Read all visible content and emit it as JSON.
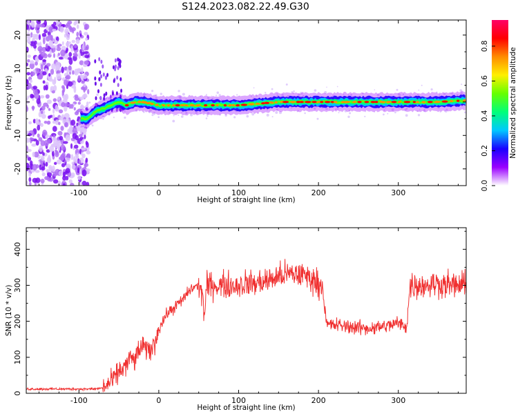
{
  "title": "S124.2023.082.22.49.G30",
  "chart_data": [
    {
      "type": "heatmap",
      "title": "S124.2023.082.22.49.G30",
      "xlabel": "Height of straight line (km)",
      "ylabel": "Frequency (Hz)",
      "xlim": [
        -166,
        385
      ],
      "ylim": [
        -25,
        24.5
      ],
      "x_ticks": [
        -100,
        0,
        100,
        200,
        300
      ],
      "y_ticks": [
        -20,
        -10,
        0,
        10,
        20
      ],
      "colorbar": {
        "label": "Normalized spectral amplitude",
        "range": [
          0,
          0.95
        ],
        "ticks": [
          0.0,
          0.2,
          0.4,
          0.6,
          0.8
        ],
        "colormap": [
          "#ffffff",
          "#9a00ff",
          "#1a00ff",
          "#00c8ff",
          "#00ff7a",
          "#66ff00",
          "#fff000",
          "#ff8c00",
          "#ff0000",
          "#ff0066"
        ]
      },
      "ridge": {
        "x": [
          -100,
          -90,
          -80,
          -70,
          -60,
          -50,
          -40,
          -30,
          -20,
          0,
          50,
          100,
          150,
          200,
          250,
          300,
          350,
          385
        ],
        "frequency": [
          -5,
          -5,
          -3,
          -2,
          -1,
          0,
          -1,
          0,
          0,
          -1,
          -1,
          -1,
          0,
          0,
          0,
          0,
          0,
          0.5
        ]
      },
      "grid": false
    },
    {
      "type": "line",
      "xlabel": "Height of straight line (km)",
      "ylabel": "SNR (10 * v/v)",
      "xlim": [
        -166,
        385
      ],
      "ylim": [
        0,
        460
      ],
      "x_ticks": [
        -100,
        0,
        100,
        200,
        300
      ],
      "y_ticks": [
        0,
        100,
        200,
        300,
        400
      ],
      "color": "#f03030",
      "series": [
        {
          "x": [
            -166,
            -140,
            -110,
            -80,
            -70,
            -60,
            -50,
            -45,
            -40,
            -35,
            -30,
            -25,
            -20,
            -15,
            -10,
            -5,
            0,
            5,
            10,
            20,
            30,
            40,
            50,
            55,
            57,
            60,
            70,
            80,
            90,
            100,
            110,
            120,
            130,
            140,
            150,
            160,
            170,
            180,
            190,
            200,
            205,
            210,
            220,
            240,
            260,
            280,
            300,
            310,
            315,
            330,
            350,
            370,
            385
          ],
          "values": [
            12,
            12,
            12,
            12,
            15,
            30,
            60,
            70,
            80,
            100,
            90,
            120,
            130,
            120,
            120,
            140,
            180,
            200,
            220,
            240,
            260,
            290,
            300,
            280,
            200,
            300,
            300,
            300,
            300,
            300,
            305,
            305,
            310,
            315,
            325,
            330,
            330,
            330,
            320,
            305,
            300,
            190,
            190,
            185,
            180,
            185,
            195,
            185,
            300,
            300,
            305,
            300,
            300
          ]
        }
      ],
      "grid": false
    }
  ]
}
